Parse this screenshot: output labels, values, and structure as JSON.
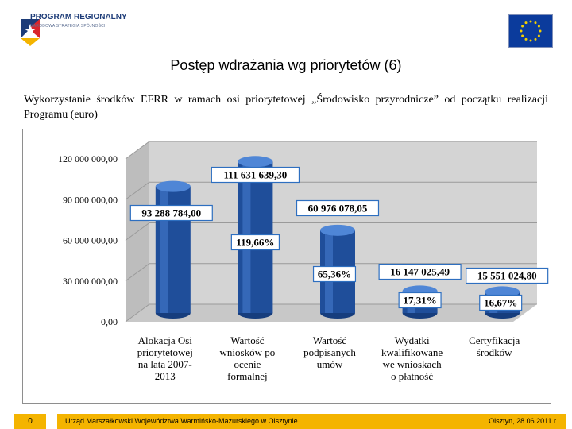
{
  "logo": {
    "line1": "PROGRAM REGIONALNY",
    "line2": "NARODOWA STRATEGIA SPÓJNOŚCI"
  },
  "title": "Postęp wdrażania wg priorytetów (6)",
  "subtitle": "Wykorzystanie środków EFRR w ramach osi priorytetowej „Środowisko przyrodnicze” od początku realizacji Programu (euro)",
  "chart_data": {
    "type": "bar",
    "categories": [
      [
        "Alokacja Osi",
        "priorytetowej",
        "na lata 2007-",
        "2013"
      ],
      [
        "Wartość",
        "wniosków po",
        "ocenie",
        "formalnej"
      ],
      [
        "Wartość",
        "podpisanych",
        "umów"
      ],
      [
        "Wydatki",
        "kwalifikowane",
        "we wnioskach",
        "o płatność"
      ],
      [
        "Certyfikacja",
        "środków"
      ]
    ],
    "values": [
      93288784.0,
      111631639.3,
      60976078.05,
      16147025.49,
      15551024.8
    ],
    "value_labels": [
      "93 288 784,00",
      "111 631 639,30",
      "60 976 078,05",
      "16 147 025,49",
      "15 551 024,80"
    ],
    "percent_labels": [
      "",
      "119,66%",
      "65,36%",
      "17,31%",
      "16,67%"
    ],
    "yticks": [
      0,
      30000000,
      60000000,
      90000000,
      120000000
    ],
    "ytick_labels": [
      "0,00",
      "30 000 000,00",
      "60 000 000,00",
      "90 000 000,00",
      "120 000 000,00"
    ],
    "ylim": [
      0,
      120000000
    ],
    "bar_color": "#1f4e9a",
    "label_border_color": "#2e6fc0",
    "grid": true
  },
  "footer": {
    "page": "0",
    "org": "Urząd Marszałkowski Województwa Warmińsko-Mazurskiego w Olsztynie",
    "date": "Olsztyn, 28.06.2011 r."
  }
}
